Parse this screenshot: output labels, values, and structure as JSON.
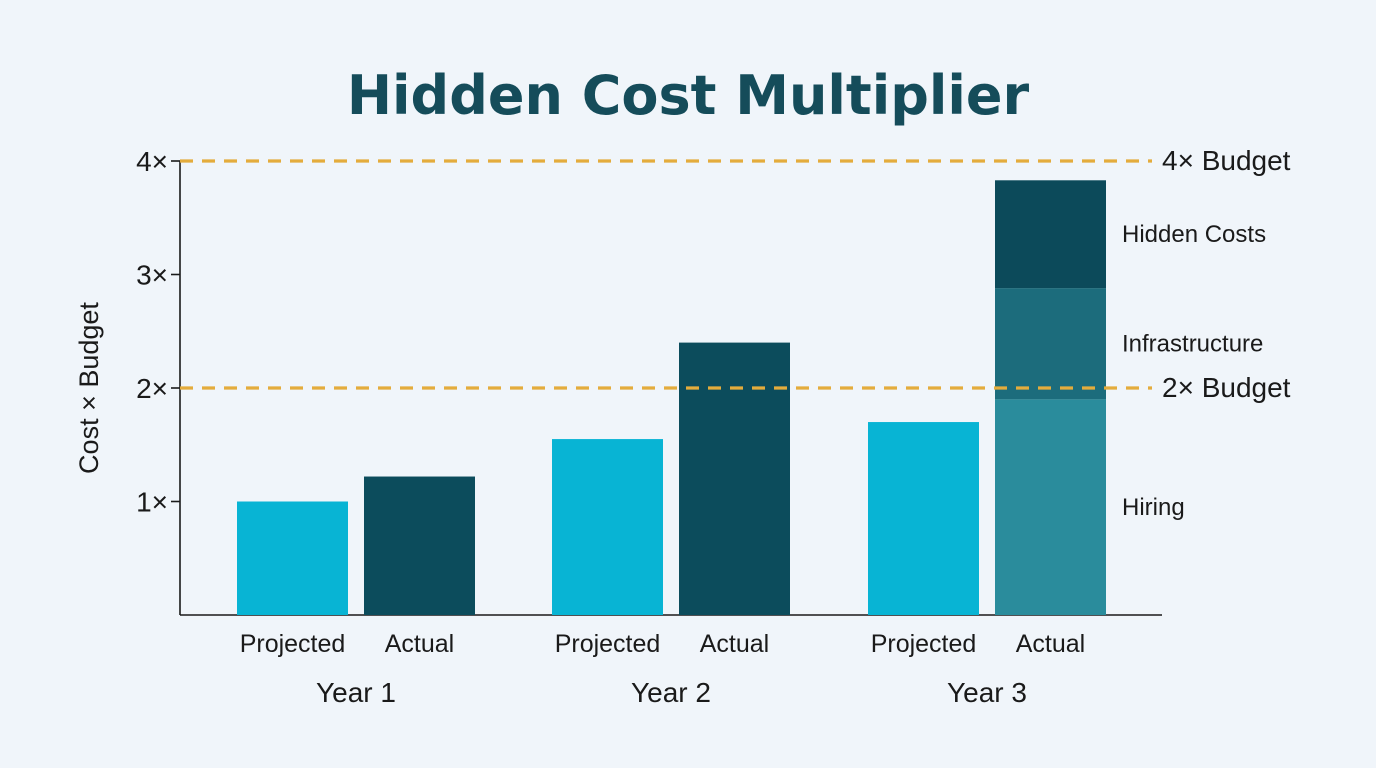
{
  "chart_data": {
    "type": "bar",
    "title": "Hidden Cost Multiplier",
    "ylabel": "Cost × Budget",
    "ylim": [
      0,
      4
    ],
    "yticks": [
      {
        "value": 1,
        "label": "1×"
      },
      {
        "value": 2,
        "label": "2×"
      },
      {
        "value": 3,
        "label": "3×"
      },
      {
        "value": 4,
        "label": "4×"
      }
    ],
    "reference_lines": [
      {
        "value": 4,
        "label": "4× Budget"
      },
      {
        "value": 2,
        "label": "2× Budget"
      }
    ],
    "groups": [
      {
        "label": "Year 1",
        "bars": [
          {
            "label": "Projected",
            "value": 1.0
          },
          {
            "label": "Actual",
            "value": 1.22
          }
        ]
      },
      {
        "label": "Year 2",
        "bars": [
          {
            "label": "Projected",
            "value": 1.55
          },
          {
            "label": "Actual",
            "value": 2.4
          }
        ]
      },
      {
        "label": "Year 3",
        "bars": [
          {
            "label": "Projected",
            "value": 1.7
          },
          {
            "label": "Actual",
            "stack": [
              {
                "label": "Hiring",
                "value": 1.9
              },
              {
                "label": "Infrastructure",
                "value": 0.98
              },
              {
                "label": "Hidden Costs",
                "value": 0.95
              }
            ]
          }
        ]
      }
    ],
    "grid": false,
    "colors": {
      "projected": "#08b4d4",
      "actual": "#0c4c5c",
      "hiring": "#2a8c9c",
      "infrastructure": "#1c6c7c",
      "hidden_costs": "#0c4a5a",
      "reference_line": "#e4ac3c",
      "title": "#154c5a",
      "axis": "#1a1a1a"
    }
  }
}
